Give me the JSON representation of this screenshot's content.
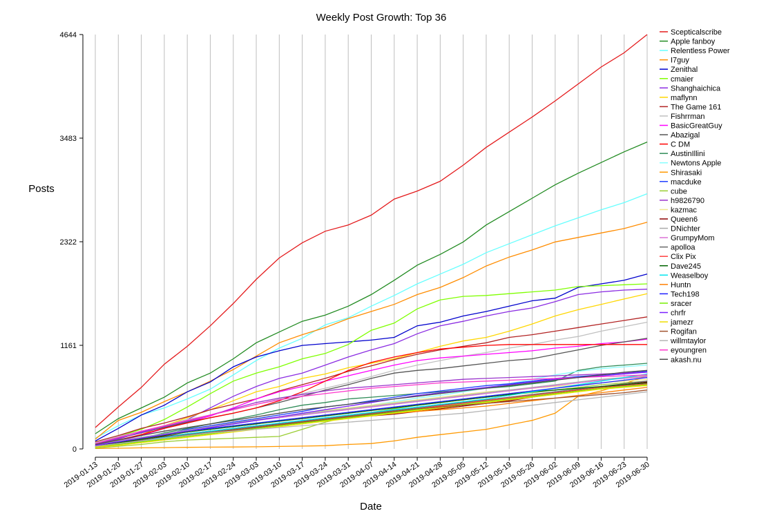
{
  "chart_data": {
    "type": "line",
    "title": "Weekly Post Growth: Top 36",
    "xlabel": "Date",
    "ylabel": "Posts",
    "x": [
      "2019-01-13",
      "2019-01-20",
      "2019-01-27",
      "2019-02-03",
      "2019-02-10",
      "2019-02-17",
      "2019-02-24",
      "2019-03-03",
      "2019-03-10",
      "2019-03-17",
      "2019-03-24",
      "2019-03-31",
      "2019-04-07",
      "2019-04-14",
      "2019-04-21",
      "2019-04-28",
      "2019-05-05",
      "2019-05-12",
      "2019-05-19",
      "2019-05-26",
      "2019-06-02",
      "2019-06-09",
      "2019-06-16",
      "2019-06-23",
      "2019-06-30"
    ],
    "yticks": [
      0,
      1161,
      2322,
      3483,
      4644
    ],
    "ytick_labels": [
      "0",
      "1161",
      "2322",
      "3483",
      "4644"
    ],
    "ylim": [
      0,
      4644
    ],
    "grid": "vertical",
    "legend": "right",
    "series": [
      {
        "name": "Scepticalscribe",
        "color": "#e41a1c",
        "values": [
          240,
          470,
          690,
          950,
          1150,
          1380,
          1630,
          1900,
          2140,
          2310,
          2440,
          2510,
          2620,
          2800,
          2890,
          3000,
          3180,
          3380,
          3550,
          3720,
          3900,
          4090,
          4280,
          4440,
          4644
        ]
      },
      {
        "name": "Apple fanboy",
        "color": "#228b22",
        "values": [
          170,
          340,
          460,
          580,
          740,
          850,
          1010,
          1190,
          1310,
          1430,
          1500,
          1600,
          1730,
          1890,
          2060,
          2180,
          2320,
          2510,
          2660,
          2810,
          2960,
          3090,
          3210,
          3330,
          3440
        ]
      },
      {
        "name": "Relentless Power",
        "color": "#66ffff",
        "values": [
          120,
          260,
          380,
          460,
          560,
          670,
          830,
          990,
          1130,
          1240,
          1390,
          1470,
          1600,
          1720,
          1850,
          1960,
          2070,
          2200,
          2300,
          2400,
          2500,
          2590,
          2680,
          2760,
          2860
        ]
      },
      {
        "name": "I7guy",
        "color": "#ff8c00",
        "values": [
          110,
          320,
          410,
          530,
          640,
          760,
          890,
          1040,
          1190,
          1280,
          1360,
          1460,
          1540,
          1620,
          1730,
          1810,
          1920,
          2050,
          2150,
          2230,
          2320,
          2370,
          2420,
          2470,
          2540
        ]
      },
      {
        "name": "Zenithal",
        "color": "#0000cd",
        "values": [
          90,
          230,
          380,
          490,
          640,
          750,
          920,
          1030,
          1100,
          1160,
          1180,
          1200,
          1220,
          1250,
          1380,
          1420,
          1490,
          1540,
          1600,
          1660,
          1690,
          1810,
          1850,
          1890,
          1960
        ]
      },
      {
        "name": "cmaier",
        "color": "#7fff00",
        "values": [
          60,
          140,
          220,
          330,
          470,
          620,
          760,
          850,
          920,
          1010,
          1070,
          1170,
          1330,
          1410,
          1570,
          1670,
          1710,
          1720,
          1740,
          1760,
          1780,
          1820,
          1830,
          1840,
          1850
        ]
      },
      {
        "name": "Shanghaichica",
        "color": "#8a2be2",
        "values": [
          50,
          110,
          190,
          260,
          330,
          460,
          590,
          700,
          790,
          850,
          940,
          1030,
          1110,
          1180,
          1290,
          1380,
          1430,
          1490,
          1540,
          1580,
          1650,
          1730,
          1760,
          1780,
          1790
        ]
      },
      {
        "name": "maflynn",
        "color": "#ffd700",
        "values": [
          40,
          100,
          160,
          260,
          350,
          440,
          540,
          640,
          700,
          790,
          840,
          910,
          960,
          1010,
          1080,
          1150,
          1210,
          1250,
          1320,
          1400,
          1490,
          1560,
          1620,
          1680,
          1740
        ]
      },
      {
        "name": "The Game 161",
        "color": "#b22222",
        "values": [
          80,
          150,
          230,
          290,
          360,
          440,
          500,
          560,
          650,
          720,
          790,
          870,
          930,
          1000,
          1060,
          1110,
          1150,
          1190,
          1250,
          1280,
          1320,
          1360,
          1400,
          1440,
          1480
        ]
      },
      {
        "name": "Fishrrman",
        "color": "#c0c0c0",
        "values": [
          70,
          140,
          200,
          260,
          330,
          380,
          440,
          500,
          560,
          620,
          680,
          740,
          810,
          880,
          940,
          990,
          1040,
          1080,
          1130,
          1170,
          1220,
          1260,
          1320,
          1370,
          1420
        ]
      },
      {
        "name": "BasicGreatGuy",
        "color": "#ff00ff",
        "values": [
          40,
          90,
          150,
          230,
          300,
          370,
          460,
          560,
          640,
          700,
          760,
          820,
          880,
          940,
          990,
          1020,
          1040,
          1060,
          1080,
          1100,
          1130,
          1150,
          1180,
          1200,
          1230
        ]
      },
      {
        "name": "Abazigal",
        "color": "#555555",
        "values": [
          60,
          120,
          180,
          240,
          300,
          350,
          400,
          460,
          520,
          590,
          660,
          720,
          790,
          850,
          880,
          900,
          930,
          960,
          990,
          1010,
          1060,
          1110,
          1160,
          1200,
          1240
        ]
      },
      {
        "name": "C DM",
        "color": "#ff0000",
        "values": [
          50,
          100,
          160,
          230,
          290,
          350,
          400,
          460,
          540,
          640,
          760,
          880,
          970,
          1030,
          1080,
          1120,
          1140,
          1160,
          1170,
          1170,
          1170,
          1170,
          1170,
          1170,
          1170
        ]
      },
      {
        "name": "AustinIllini",
        "color": "#2e8b57",
        "values": [
          20,
          60,
          120,
          180,
          230,
          280,
          330,
          380,
          440,
          490,
          520,
          560,
          580,
          600,
          620,
          640,
          660,
          680,
          700,
          730,
          760,
          880,
          920,
          940,
          960
        ]
      },
      {
        "name": "Newtons Apple",
        "color": "#87ffff",
        "values": [
          30,
          80,
          130,
          170,
          200,
          240,
          280,
          320,
          360,
          390,
          420,
          450,
          490,
          530,
          570,
          600,
          640,
          680,
          730,
          780,
          830,
          870,
          900,
          920,
          940
        ]
      },
      {
        "name": "Shirasaki",
        "color": "#ff9900",
        "values": [
          5,
          8,
          12,
          15,
          18,
          20,
          22,
          24,
          28,
          32,
          36,
          50,
          60,
          90,
          130,
          160,
          190,
          220,
          270,
          320,
          400,
          590,
          650,
          730,
          820
        ]
      },
      {
        "name": "macduke",
        "color": "#1e3cff",
        "values": [
          20,
          70,
          110,
          160,
          220,
          260,
          300,
          340,
          380,
          420,
          470,
          500,
          540,
          580,
          620,
          650,
          680,
          710,
          730,
          760,
          790,
          810,
          830,
          850,
          870
        ]
      },
      {
        "name": "cube",
        "color": "#9acd32",
        "values": [
          10,
          30,
          50,
          80,
          100,
          110,
          120,
          130,
          140,
          220,
          300,
          360,
          410,
          450,
          490,
          520,
          550,
          580,
          610,
          630,
          660,
          690,
          720,
          740,
          760
        ]
      },
      {
        "name": "h9826790",
        "color": "#9932cc",
        "values": [
          60,
          120,
          180,
          250,
          310,
          380,
          450,
          520,
          570,
          610,
          650,
          680,
          700,
          720,
          740,
          760,
          780,
          790,
          800,
          810,
          820,
          830,
          840,
          850,
          860
        ]
      },
      {
        "name": "kazmac",
        "color": "#f0e68c",
        "values": [
          40,
          80,
          120,
          160,
          200,
          240,
          280,
          320,
          360,
          400,
          430,
          460,
          490,
          520,
          550,
          580,
          610,
          640,
          660,
          680,
          700,
          720,
          740,
          760,
          780
        ]
      },
      {
        "name": "Queen6",
        "color": "#8b0000",
        "values": [
          30,
          60,
          100,
          140,
          170,
          200,
          230,
          260,
          280,
          300,
          330,
          350,
          370,
          390,
          420,
          450,
          480,
          510,
          540,
          580,
          620,
          660,
          690,
          720,
          750
        ]
      },
      {
        "name": "DNichter",
        "color": "#a9a9a9",
        "values": [
          50,
          90,
          130,
          170,
          210,
          250,
          290,
          330,
          360,
          390,
          420,
          450,
          480,
          510,
          540,
          570,
          600,
          630,
          660,
          690,
          720,
          750,
          780,
          800,
          820
        ]
      },
      {
        "name": "GrumpyMom",
        "color": "#da70d6",
        "values": [
          40,
          80,
          120,
          160,
          200,
          240,
          280,
          320,
          350,
          380,
          410,
          440,
          470,
          500,
          530,
          560,
          590,
          620,
          650,
          680,
          710,
          740,
          770,
          790,
          810
        ]
      },
      {
        "name": "apolloa",
        "color": "#696969",
        "values": [
          40,
          70,
          100,
          130,
          160,
          190,
          220,
          250,
          280,
          310,
          340,
          370,
          400,
          430,
          460,
          490,
          520,
          550,
          580,
          610,
          640,
          670,
          700,
          730,
          760
        ]
      },
      {
        "name": "Clix Pix",
        "color": "#ff4040",
        "values": [
          30,
          60,
          90,
          120,
          150,
          180,
          210,
          240,
          270,
          300,
          330,
          360,
          390,
          420,
          450,
          480,
          510,
          540,
          570,
          600,
          630,
          660,
          690,
          710,
          730
        ]
      },
      {
        "name": "Dave245",
        "color": "#006400",
        "values": [
          30,
          70,
          110,
          150,
          190,
          220,
          250,
          280,
          310,
          340,
          370,
          400,
          430,
          460,
          490,
          520,
          550,
          580,
          610,
          640,
          660,
          680,
          700,
          720,
          740
        ]
      },
      {
        "name": "Weaselboy",
        "color": "#00e5ee",
        "values": [
          20,
          50,
          90,
          130,
          170,
          200,
          230,
          260,
          290,
          320,
          350,
          380,
          410,
          440,
          470,
          500,
          530,
          560,
          600,
          640,
          680,
          720,
          760,
          800,
          840
        ]
      },
      {
        "name": "Huntn",
        "color": "#ff7f00",
        "values": [
          30,
          60,
          90,
          120,
          150,
          180,
          210,
          240,
          270,
          300,
          330,
          360,
          380,
          400,
          420,
          440,
          460,
          480,
          510,
          540,
          570,
          600,
          630,
          660,
          690
        ]
      },
      {
        "name": "Tech198",
        "color": "#1f1fff",
        "values": [
          40,
          80,
          120,
          160,
          200,
          230,
          260,
          290,
          320,
          350,
          380,
          410,
          440,
          470,
          500,
          530,
          560,
          590,
          620,
          650,
          680,
          710,
          740,
          770,
          800
        ]
      },
      {
        "name": "sracer",
        "color": "#76ee00",
        "values": [
          20,
          50,
          80,
          110,
          140,
          170,
          200,
          230,
          260,
          290,
          320,
          350,
          380,
          410,
          440,
          470,
          500,
          530,
          560,
          590,
          620,
          650,
          680,
          700,
          720
        ]
      },
      {
        "name": "chrfr",
        "color": "#7a1fff",
        "values": [
          40,
          80,
          120,
          160,
          200,
          240,
          280,
          320,
          360,
          400,
          440,
          480,
          520,
          560,
          600,
          630,
          660,
          690,
          720,
          750,
          780,
          800,
          820,
          840,
          860
        ]
      },
      {
        "name": "jamezr",
        "color": "#eedd00",
        "values": [
          20,
          40,
          70,
          100,
          130,
          160,
          190,
          220,
          250,
          280,
          310,
          340,
          370,
          400,
          430,
          460,
          490,
          520,
          550,
          580,
          610,
          640,
          670,
          690,
          710
        ]
      },
      {
        "name": "Rogifan",
        "color": "#a0522d",
        "values": [
          30,
          60,
          90,
          120,
          150,
          180,
          210,
          240,
          270,
          300,
          330,
          360,
          390,
          420,
          450,
          470,
          490,
          510,
          530,
          550,
          570,
          590,
          610,
          630,
          660
        ]
      },
      {
        "name": "willmtaylor",
        "color": "#b5b5b5",
        "values": [
          30,
          60,
          90,
          120,
          150,
          180,
          200,
          220,
          240,
          260,
          280,
          300,
          320,
          340,
          360,
          380,
          400,
          430,
          460,
          490,
          520,
          550,
          580,
          610,
          640
        ]
      },
      {
        "name": "eyoungren",
        "color": "#ff33cc",
        "values": [
          60,
          130,
          200,
          260,
          320,
          380,
          440,
          500,
          550,
          590,
          620,
          650,
          680,
          700,
          720,
          740,
          750,
          760,
          770,
          780,
          790,
          800,
          810,
          820,
          830
        ]
      },
      {
        "name": "akash.nu",
        "color": "#4d4d4d",
        "values": [
          50,
          100,
          150,
          200,
          240,
          280,
          320,
          360,
          400,
          440,
          470,
          500,
          530,
          560,
          590,
          620,
          650,
          680,
          710,
          740,
          770,
          800,
          830,
          860,
          880
        ]
      }
    ]
  }
}
